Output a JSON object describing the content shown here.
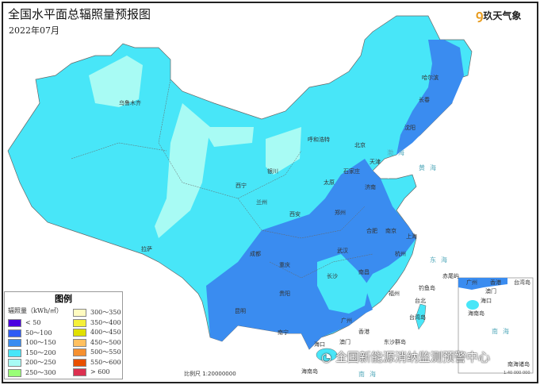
{
  "header": {
    "title": "全国水平面总辐照量预报图",
    "subtitle": "2022年07月",
    "logo": "玖天气象"
  },
  "colors": {
    "c50": "#4a00e0",
    "c100": "#2f5cf5",
    "c150": "#3a8cf0",
    "c200": "#48e6f8",
    "c250": "#a8fbf4",
    "c300": "#99ff77",
    "c350": "#fffbc0",
    "c400": "#f5f03a",
    "c450": "#e0e000",
    "c500": "#ffc060",
    "c550": "#f59030",
    "c600": "#e85000",
    "c600plus": "#dc3050"
  },
  "legend": {
    "title": "图例",
    "unit": "辐照量（kWh/㎡）",
    "items": [
      {
        "label": "< 50",
        "color": "#4a00e0"
      },
      {
        "label": "50～100",
        "color": "#2f5cf5"
      },
      {
        "label": "100～150",
        "color": "#3a8cf0"
      },
      {
        "label": "150～200",
        "color": "#48e6f8"
      },
      {
        "label": "200～250",
        "color": "#a8fbf4"
      },
      {
        "label": "250～300",
        "color": "#99ff77"
      },
      {
        "label": "300～350",
        "color": "#fffbc0"
      },
      {
        "label": "350～400",
        "color": "#f5f03a"
      },
      {
        "label": "400～450",
        "color": "#e0e000"
      },
      {
        "label": "450～500",
        "color": "#ffc060"
      },
      {
        "label": "500～550",
        "color": "#f59030"
      },
      {
        "label": "550～600",
        "color": "#e85000"
      },
      {
        "label": "> 600",
        "color": "#dc3050"
      }
    ]
  },
  "cities": [
    "乌鲁木齐",
    "拉萨",
    "西宁",
    "兰州",
    "银川",
    "呼和浩特",
    "北京",
    "天津",
    "石家庄",
    "太原",
    "济南",
    "郑州",
    "西安",
    "成都",
    "重庆",
    "武汉",
    "合肥",
    "南京",
    "上海",
    "杭州",
    "长沙",
    "南昌",
    "福州",
    "贵阳",
    "昆明",
    "南宁",
    "广州",
    "香港",
    "澳门",
    "台北",
    "台湾岛",
    "海口",
    "海南岛",
    "哈尔滨",
    "长春",
    "沈阳",
    "钓鱼岛",
    "赤尾屿",
    "东沙群岛"
  ],
  "seas": {
    "east": "东海",
    "south": "南海",
    "bohai": "渤海",
    "yellow": "黄海"
  },
  "inset": {
    "label": "南海诸岛",
    "scale": "1:40 000 000",
    "cities": [
      "广州",
      "香港",
      "澳门",
      "海口",
      "海南岛",
      "台湾岛",
      "南海"
    ]
  },
  "scale": "比例尺 1:20000000",
  "watermark": "全国新能源消纳监测预警中心"
}
